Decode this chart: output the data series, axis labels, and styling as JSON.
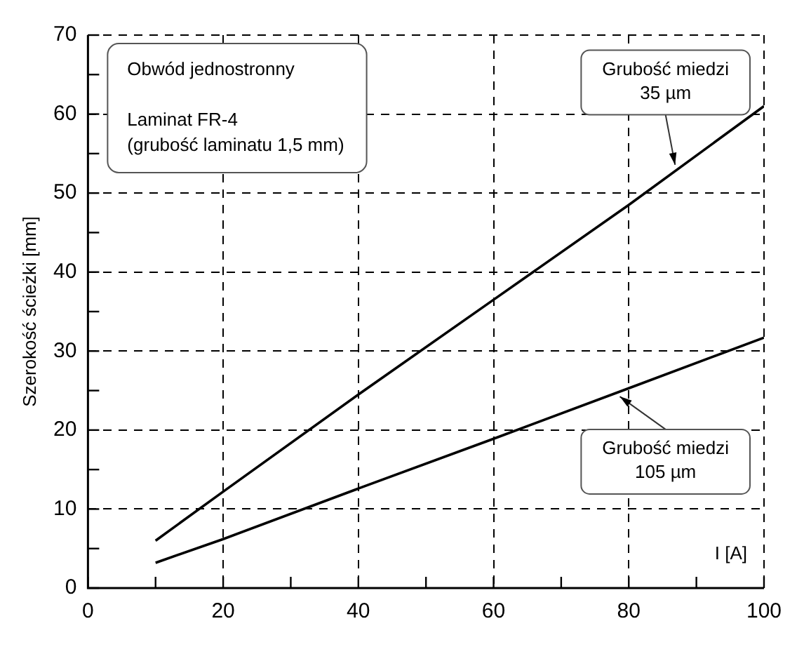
{
  "chart_data": {
    "type": "line",
    "xlabel": "I [A]",
    "ylabel": "Szerokość ścieżki [mm]",
    "x": [
      10,
      20,
      40,
      60,
      80,
      100
    ],
    "series": [
      {
        "name": "Grubość miedzi 35 µm",
        "color": "#000000",
        "values": [
          6,
          12.2,
          24.5,
          36.5,
          48.5,
          61
        ]
      },
      {
        "name": "Grubość miedzi 105 µm",
        "color": "#000000",
        "values": [
          3.2,
          6.2,
          12.6,
          18.9,
          25.3,
          31.7
        ]
      }
    ],
    "xlim": [
      0,
      100
    ],
    "ylim": [
      0,
      70
    ],
    "xticks": [
      0,
      {
        "value": 10,
        "label": null
      },
      20,
      {
        "value": 30,
        "label": null
      },
      40,
      {
        "value": 50,
        "label": null
      },
      60,
      {
        "value": 70,
        "label": null
      },
      80,
      {
        "value": 90,
        "label": null
      },
      100
    ],
    "yticks": [
      0,
      {
        "value": 5,
        "label": null
      },
      10,
      {
        "value": 15,
        "label": null
      },
      20,
      {
        "value": 25,
        "label": null
      },
      30,
      {
        "value": 35,
        "label": null
      },
      40,
      {
        "value": 45,
        "label": null
      },
      50,
      {
        "value": 55,
        "label": null
      },
      60,
      {
        "value": 65,
        "label": null
      },
      70
    ],
    "grid": true,
    "marker": "none",
    "line_style": "solid",
    "annotations": [
      "Obwód jednostronny\n\nLaminat FR-4\n(grubość laminatu 1,5 mm)"
    ]
  }
}
